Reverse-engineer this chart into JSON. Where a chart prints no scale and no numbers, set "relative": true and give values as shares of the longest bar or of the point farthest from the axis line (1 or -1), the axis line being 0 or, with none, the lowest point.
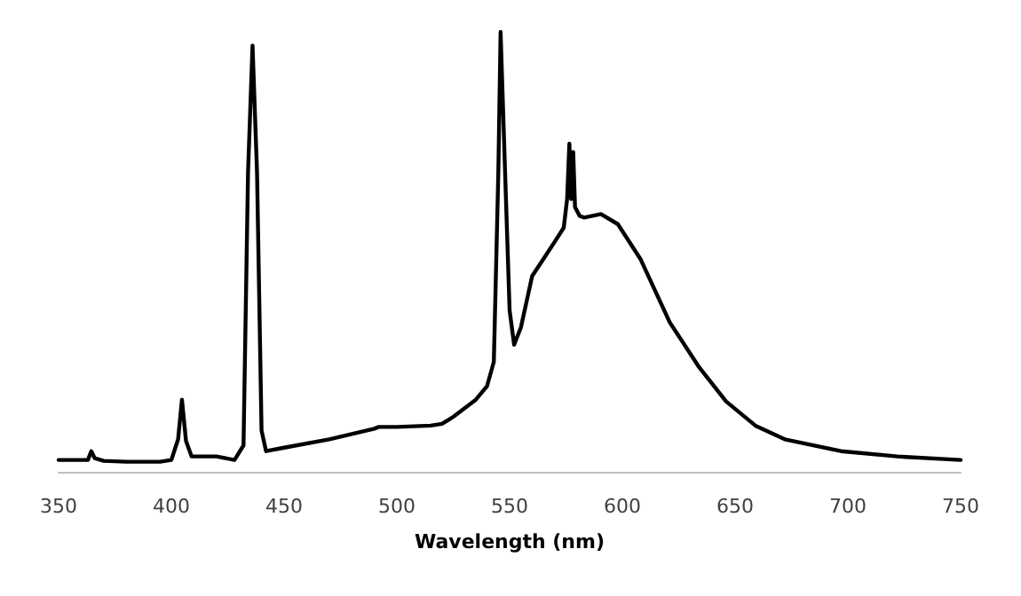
{
  "chart_data": {
    "type": "line",
    "xlabel": "Wavelength (nm)",
    "relative": true,
    "xlim": [
      350,
      750
    ],
    "xticks": [
      350,
      400,
      450,
      500,
      550,
      600,
      650,
      700,
      750
    ],
    "grid": false,
    "marker": "none",
    "line_style": "solid",
    "x": [
      350,
      360,
      363,
      364.5,
      366,
      370,
      380,
      395,
      400,
      403,
      404.7,
      406.5,
      409,
      420,
      428,
      432,
      434,
      436,
      438,
      440,
      442,
      450,
      470,
      490,
      492,
      500,
      515,
      520,
      525,
      535,
      540,
      543,
      545,
      546,
      548,
      550,
      552,
      555,
      560,
      565,
      570,
      574,
      575.5,
      576.5,
      577.3,
      578.2,
      579,
      581,
      583,
      590.5,
      598,
      608,
      621,
      634,
      646,
      659,
      672,
      697,
      722,
      750
    ],
    "series": [
      {
        "color": "#000000",
        "values": [
          0.027,
          0.027,
          0.027,
          0.047,
          0.031,
          0.025,
          0.023,
          0.023,
          0.027,
          0.074,
          0.164,
          0.07,
          0.035,
          0.035,
          0.027,
          0.06,
          0.68,
          0.969,
          0.68,
          0.094,
          0.047,
          0.055,
          0.074,
          0.098,
          0.102,
          0.102,
          0.105,
          0.109,
          0.125,
          0.164,
          0.195,
          0.25,
          0.68,
          1.0,
          0.68,
          0.367,
          0.289,
          0.328,
          0.445,
          0.484,
          0.523,
          0.555,
          0.62,
          0.746,
          0.62,
          0.727,
          0.602,
          0.582,
          0.578,
          0.586,
          0.563,
          0.484,
          0.34,
          0.238,
          0.16,
          0.105,
          0.074,
          0.047,
          0.035,
          0.027
        ]
      }
    ]
  }
}
